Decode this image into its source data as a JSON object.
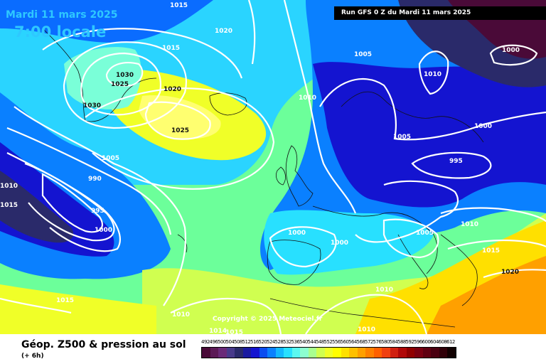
{
  "header": {
    "date": "Mardi 11 mars 2025",
    "time": "7:00 locale",
    "run_info": "Run GFS 0 Z du Mardi 11 mars 2025"
  },
  "map": {
    "copyright": "Copyright © 2025 Meteociel.fr",
    "isobar_labels": [
      "1015",
      "1020",
      "1015",
      "1030",
      "1025",
      "1030",
      "1020",
      "1025",
      "1005",
      "990",
      "995",
      "1000",
      "1010",
      "1015",
      "1010",
      "1005",
      "1010",
      "1005",
      "1000",
      "995",
      "1000",
      "1000",
      "1000",
      "1005",
      "1010",
      "1015",
      "1020",
      "1010",
      "1015",
      "1010",
      "1014",
      "1015",
      "1010",
      "1000",
      "1010"
    ]
  },
  "footer": {
    "title": "Géop. Z500 & pression au sol",
    "subtitle": "(+ 6h)"
  },
  "legend": {
    "values": [
      "492",
      "496",
      "500",
      "504",
      "508",
      "512",
      "516",
      "520",
      "524",
      "528",
      "532",
      "536",
      "540",
      "544",
      "548",
      "552",
      "556",
      "560",
      "564",
      "568",
      "572",
      "576",
      "580",
      "584",
      "588",
      "592",
      "596",
      "600",
      "604",
      "608",
      "612"
    ],
    "colors": [
      "#4a0a38",
      "#5c1a56",
      "#6a2a78",
      "#483a8a",
      "#2a2a6a",
      "#1a1aa0",
      "#1414d0",
      "#0a4cf0",
      "#0a80ff",
      "#14b8ff",
      "#28e0ff",
      "#5af8f0",
      "#8cffd0",
      "#a8ff90",
      "#d0ff50",
      "#f0ff28",
      "#ffff00",
      "#ffe000",
      "#ffc000",
      "#ffa000",
      "#ff8000",
      "#ff6000",
      "#f04010",
      "#d02010",
      "#b00808",
      "#900000",
      "#7a0010",
      "#600010",
      "#4a0010",
      "#300008",
      "#100000"
    ]
  }
}
